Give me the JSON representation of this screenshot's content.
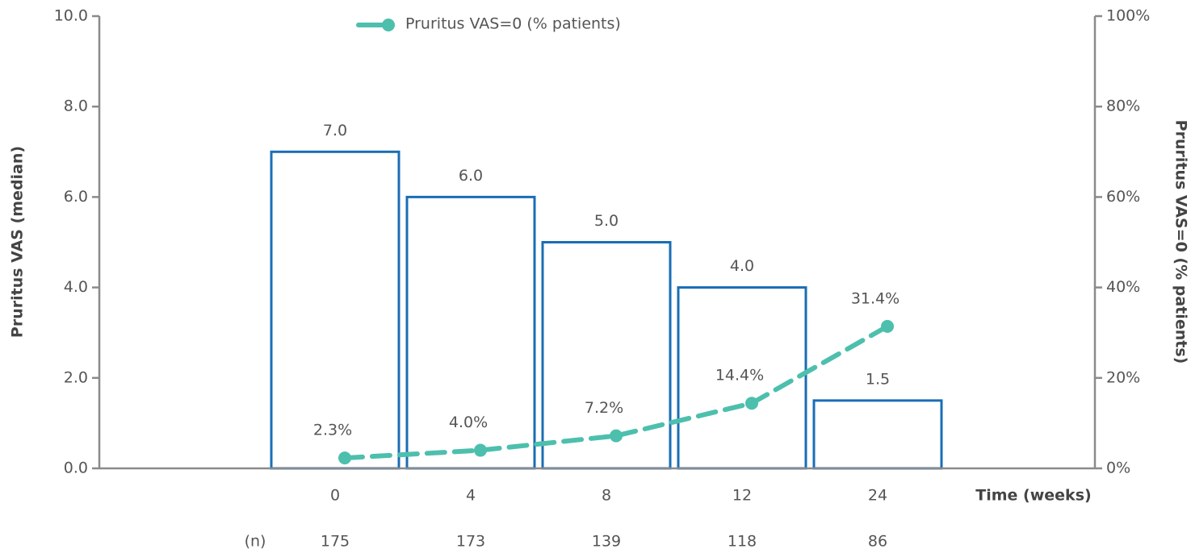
{
  "chart_data": {
    "type": "bar",
    "categories": [
      "0",
      "4",
      "8",
      "12",
      "24"
    ],
    "series": [
      {
        "type": "bar",
        "color": "#1a6db5",
        "values": [
          7.0,
          6.0,
          5.0,
          4.0,
          1.5
        ],
        "value_labels": [
          "7.0",
          "6.0",
          "5.0",
          "4.0",
          "1.5"
        ]
      },
      {
        "type": "line",
        "name": "Pruritus VAS=0 (% patients)",
        "axis": "y2",
        "color": "#4dbfad",
        "values": [
          2.3,
          4.0,
          7.2,
          14.4,
          31.4
        ],
        "value_labels": [
          "2.3%",
          "4.0%",
          "7.2%",
          "14.4%",
          "31.4%"
        ]
      }
    ],
    "ylim": [
      0,
      10
    ],
    "yticks": [
      {
        "value": 0,
        "label": "0.0"
      },
      {
        "value": 2,
        "label": "2.0"
      },
      {
        "value": 4,
        "label": "4.0"
      },
      {
        "value": 6,
        "label": "6.0"
      },
      {
        "value": 8,
        "label": "8.0"
      },
      {
        "value": 10,
        "label": "10.0"
      }
    ],
    "y2lim": [
      0,
      100
    ],
    "y2ticks": [
      {
        "value": 0,
        "label": "0%"
      },
      {
        "value": 20,
        "label": "20%"
      },
      {
        "value": 40,
        "label": "40%"
      },
      {
        "value": 60,
        "label": "60%"
      },
      {
        "value": 80,
        "label": "80%"
      },
      {
        "value": 100,
        "label": "100%"
      }
    ],
    "ylabel": "Pruritus VAS (median)",
    "y2label": "Pruritus VAS=0 (% patients)",
    "xlabel": "Time (weeks)",
    "n_label": "(n)",
    "n_values": [
      175,
      173,
      139,
      118,
      86
    ],
    "legend": "top"
  }
}
